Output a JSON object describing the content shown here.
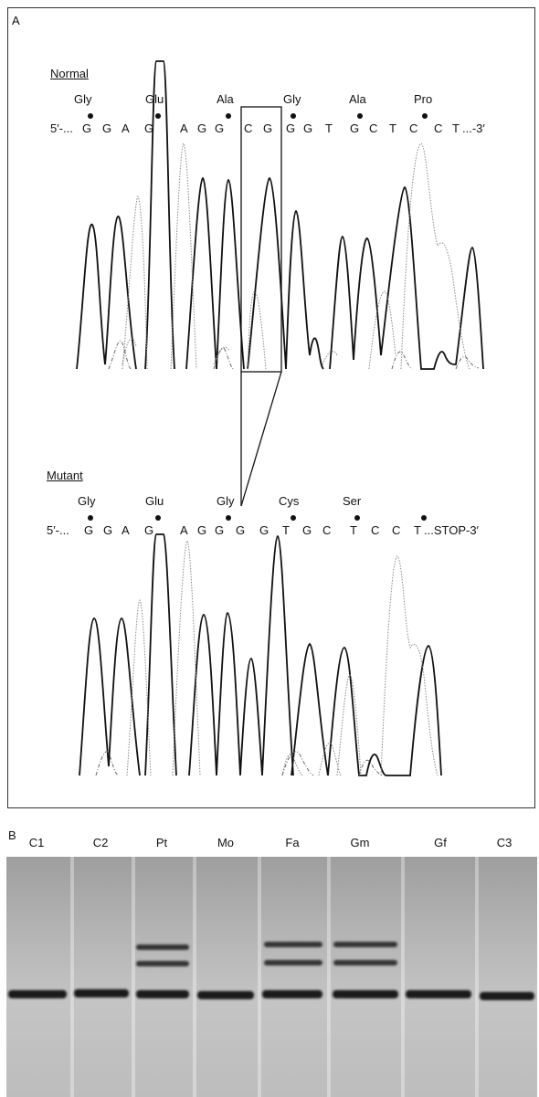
{
  "panel_a": {
    "label": "A",
    "normal": {
      "heading": "Normal",
      "amino_acids": [
        "Gly",
        "Glu",
        "Ala",
        "Gly",
        "Ala",
        "Pro"
      ],
      "seq_prefix": "5′-...",
      "bases": [
        "G",
        "G",
        "A",
        "G",
        "A",
        "G",
        "G",
        "C",
        "G",
        "G",
        "G",
        "T",
        "G",
        "C",
        "T",
        "C",
        "C",
        "T"
      ],
      "seq_suffix": "...-3′"
    },
    "mutant": {
      "heading": "Mutant",
      "amino_acids": [
        "Gly",
        "Glu",
        "Gly",
        "Cys",
        "Ser"
      ],
      "seq_prefix": "5′-...",
      "bases": [
        "G",
        "G",
        "A",
        "G",
        "A",
        "G",
        "G",
        "G",
        "G",
        "T",
        "G",
        "C",
        "T",
        "C",
        "C",
        "T"
      ],
      "seq_suffix": "...STOP-3′"
    }
  },
  "panel_b": {
    "label": "B",
    "lanes": [
      "C1",
      "C2",
      "Pt",
      "Mo",
      "Fa",
      "Gm",
      "Gf",
      "C3"
    ],
    "heteroduplex_lanes": [
      "Pt",
      "Fa",
      "Gm"
    ]
  }
}
